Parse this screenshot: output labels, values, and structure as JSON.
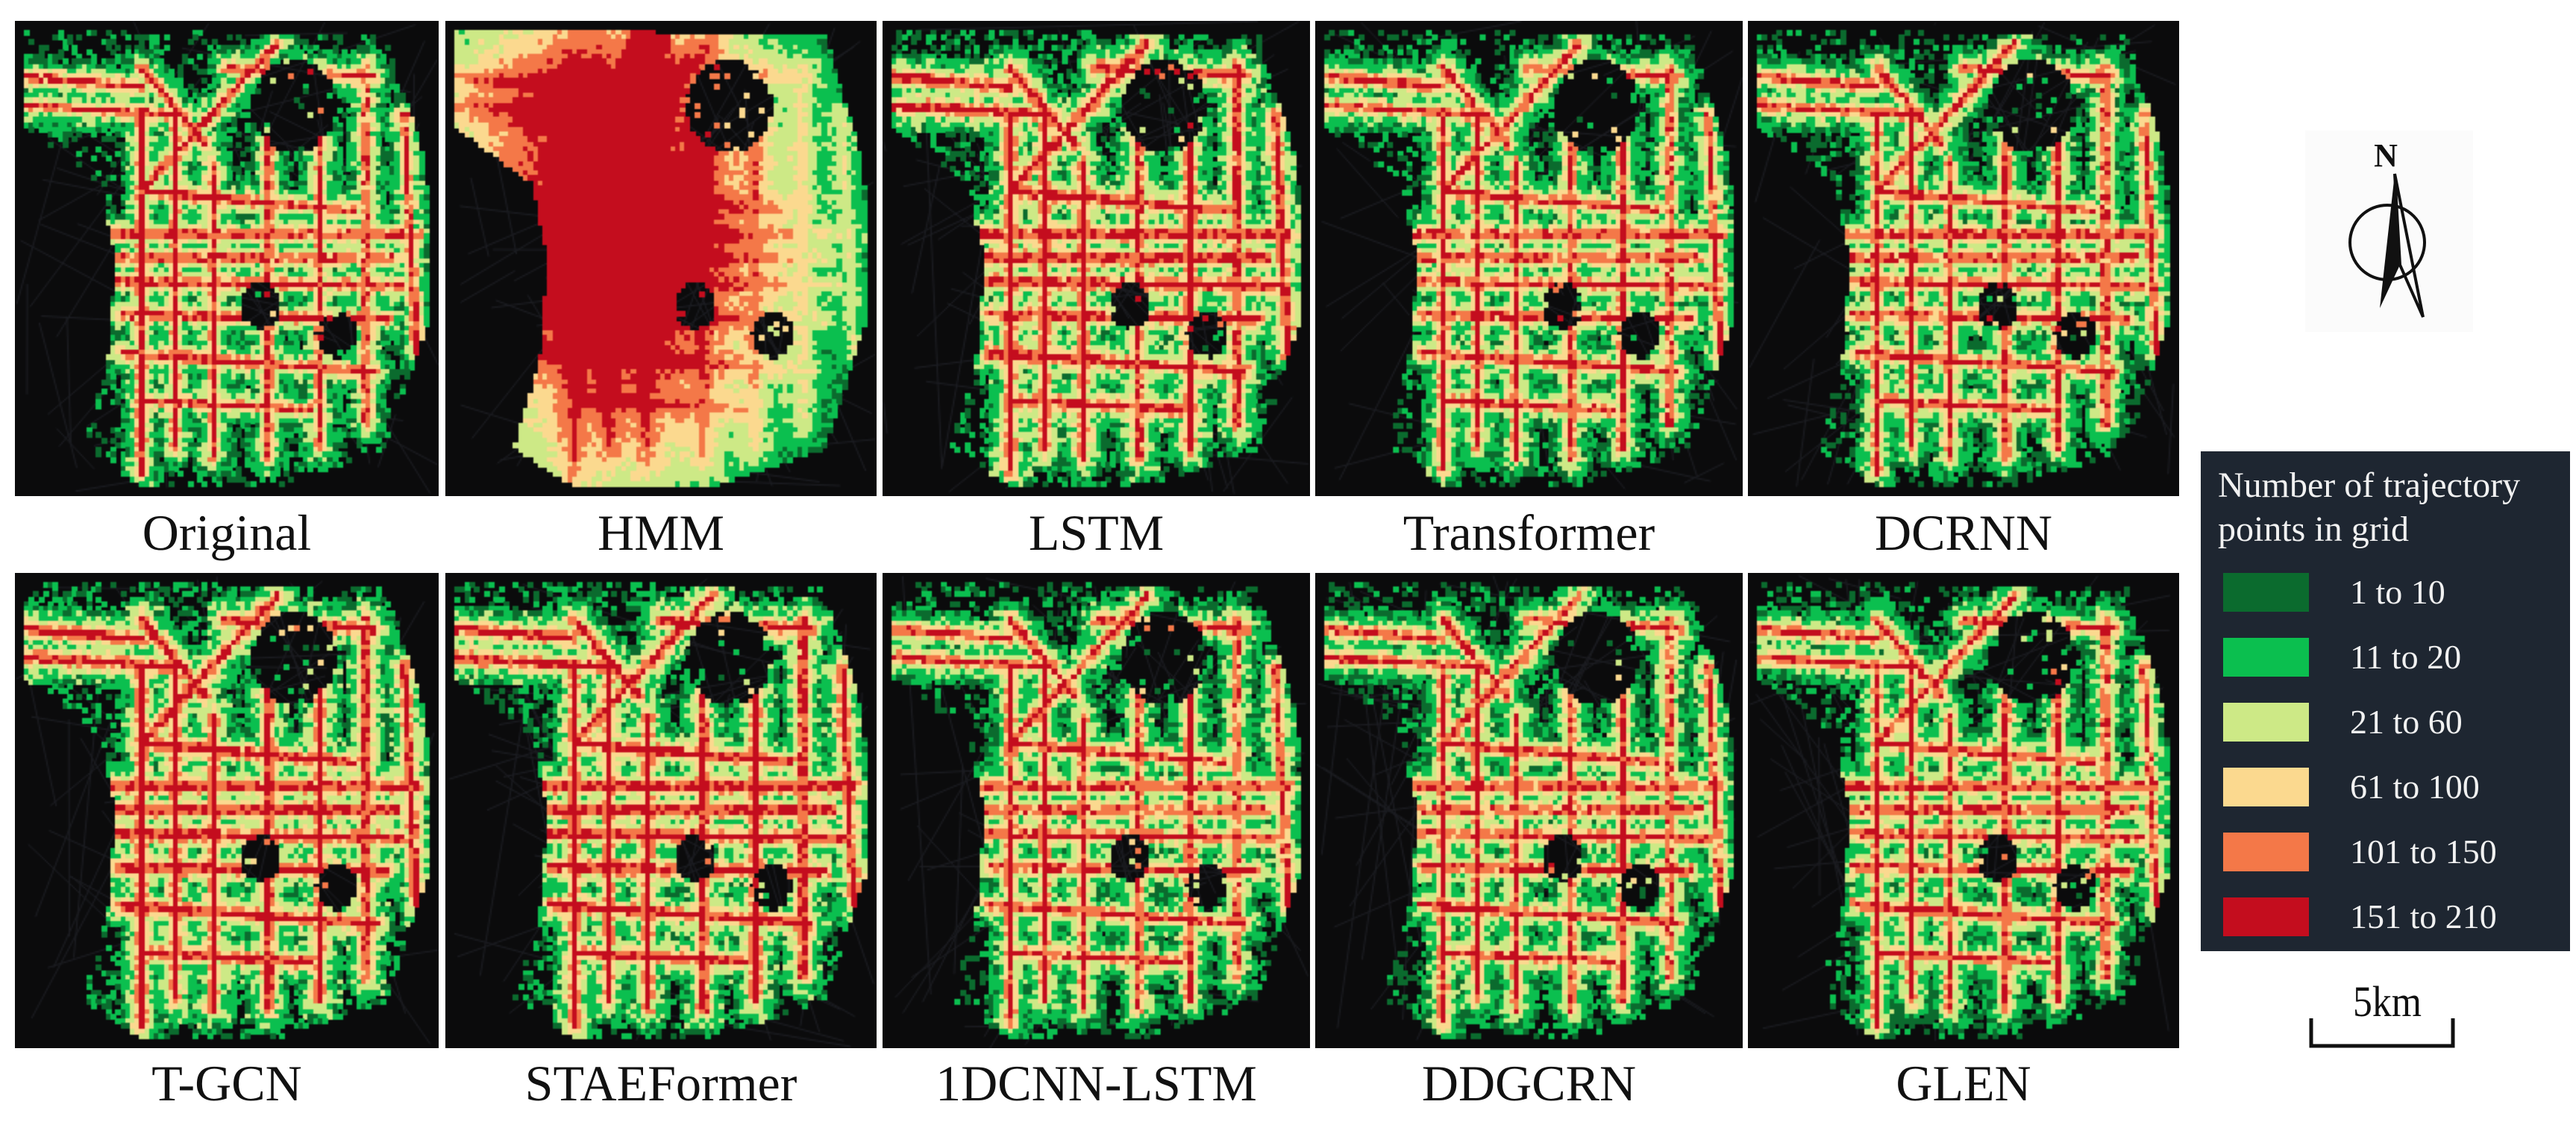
{
  "panels": [
    {
      "label": "Original"
    },
    {
      "label": "HMM"
    },
    {
      "label": "LSTM"
    },
    {
      "label": "Transformer"
    },
    {
      "label": "DCRNN"
    },
    {
      "label": "T-GCN"
    },
    {
      "label": "STAEFormer"
    },
    {
      "label": "1DCNN-LSTM"
    },
    {
      "label": "DDGCRN"
    },
    {
      "label": "GLEN"
    }
  ],
  "legend": {
    "title": "Number of trajectory points in grid",
    "items": [
      {
        "label": "1 to 10",
        "color": "#0b6b2e"
      },
      {
        "label": "11 to 20",
        "color": "#0bbf4f"
      },
      {
        "label": "21 to 60",
        "color": "#cde986"
      },
      {
        "label": "61 to 100",
        "color": "#fbd98f"
      },
      {
        "label": "101 to 150",
        "color": "#f47848"
      },
      {
        "label": "151 to 210",
        "color": "#c40d1e"
      }
    ]
  },
  "north_arrow": {
    "label": "N"
  },
  "scale_bar": {
    "label": "5km"
  }
}
